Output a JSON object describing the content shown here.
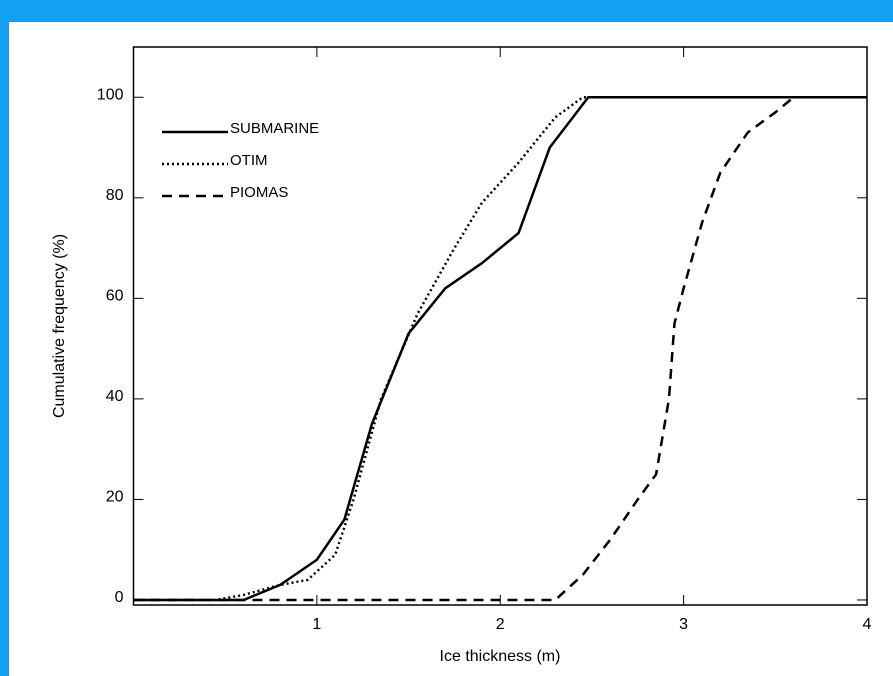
{
  "chart_data": {
    "type": "line",
    "x_label": "Ice thickness (m)",
    "y_label": "Cumulative frequency (%)",
    "xlim": [
      0,
      4
    ],
    "xticks": [
      1,
      2,
      3,
      4
    ],
    "ylim": [
      -1,
      110
    ],
    "yticks": [
      0,
      20,
      40,
      60,
      80,
      100
    ],
    "legend_position": "upper-left",
    "series": [
      {
        "name": "SUBMARINE",
        "color": "#000000",
        "line_style": "solid",
        "x": [
          0,
          0.6,
          0.8,
          1.0,
          1.15,
          1.3,
          1.5,
          1.7,
          1.9,
          2.1,
          2.27,
          2.48,
          4
        ],
        "values": [
          0,
          0,
          3,
          8,
          16,
          35,
          53,
          62,
          67,
          73,
          90,
          100,
          100
        ]
      },
      {
        "name": "OTIM",
        "color": "#000000",
        "line_style": "dotted",
        "x": [
          0,
          0.45,
          0.6,
          0.8,
          0.95,
          1.1,
          1.2,
          1.35,
          1.55,
          1.75,
          1.9,
          2.1,
          2.3,
          2.45,
          4
        ],
        "values": [
          0,
          0,
          1,
          3,
          4,
          9,
          20,
          40,
          57,
          70,
          79,
          87,
          96,
          100,
          100
        ]
      },
      {
        "name": "PIOMAS",
        "color": "#000000",
        "line_style": "dashed",
        "x": [
          0,
          2.3,
          2.45,
          2.6,
          2.75,
          2.85,
          2.92,
          2.95,
          3.0,
          3.1,
          3.2,
          3.35,
          3.5,
          3.6,
          4
        ],
        "values": [
          0,
          0,
          5,
          12,
          20,
          25,
          40,
          55,
          62,
          75,
          85,
          93,
          97,
          100,
          100
        ]
      }
    ]
  }
}
